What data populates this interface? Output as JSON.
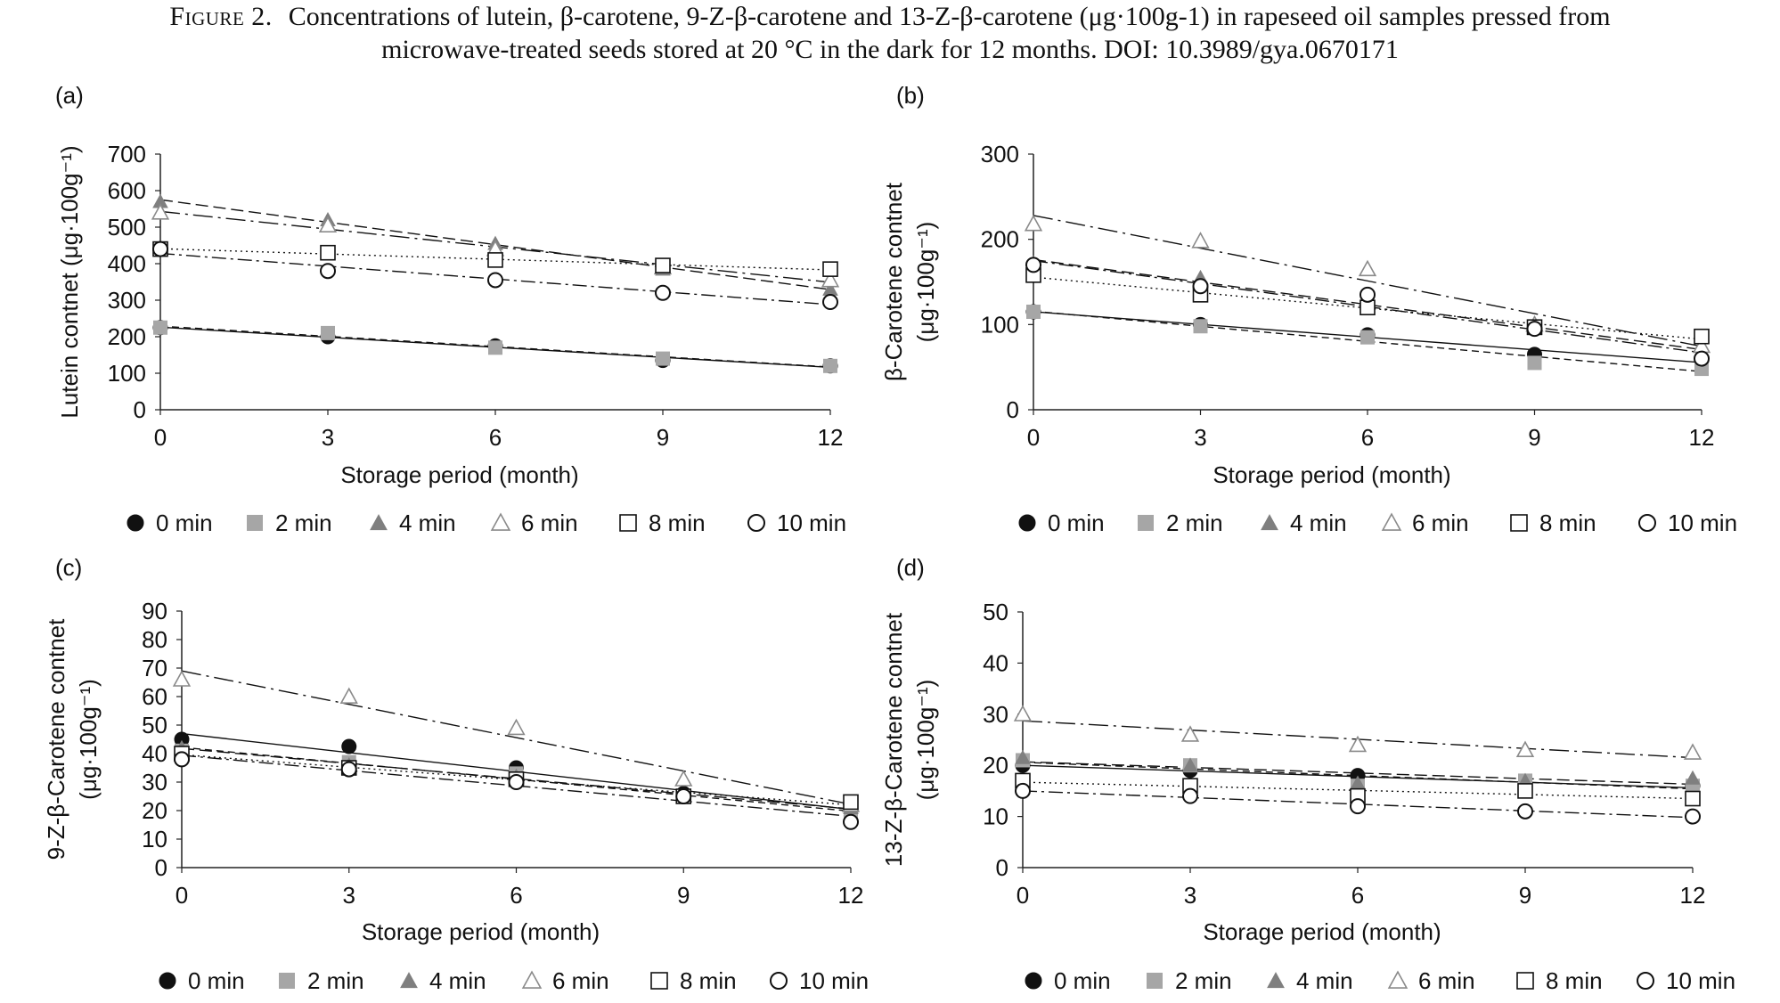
{
  "caption": {
    "label": "Figure 2.",
    "line1": "Concentrations of lutein, β-carotene, 9-Z-β-carotene and 13-Z-β-carotene (μg·100g-1) in rapeseed oil samples pressed from",
    "line2": "microwave-treated seeds stored at 20 °C in the dark for 12 months. DOI: 10.3989/gya.0670171"
  },
  "legend_entries": [
    {
      "label": "0 min",
      "marker": "circle-filled"
    },
    {
      "label": "2 min",
      "marker": "square-gray"
    },
    {
      "label": "4 min",
      "marker": "triangle-filled"
    },
    {
      "label": "6 min",
      "marker": "triangle-open"
    },
    {
      "label": "8 min",
      "marker": "square-open"
    },
    {
      "label": "10 min",
      "marker": "circle-open"
    }
  ],
  "colors": {
    "axis": "#222222",
    "black": "#111111",
    "gray_marker": "#a6a6a6",
    "dark_gray_marker": "#7f7f7f",
    "open_gray": "#8a8a8a"
  },
  "chart_data": [
    {
      "panel": "(a)",
      "type": "scatter",
      "trendlines": "linear",
      "xlabel": "Storage period (month)",
      "ylabel": [
        "Lutein contnet (μg·100g⁻¹)"
      ],
      "x": [
        0,
        3,
        6,
        9,
        12
      ],
      "xticks": [
        "0",
        "3",
        "6",
        "9",
        "12"
      ],
      "ylim": [
        0,
        700
      ],
      "yticks": [
        "0",
        "100",
        "200",
        "300",
        "400",
        "500",
        "600",
        "700"
      ],
      "series": [
        {
          "name": "0 min",
          "values": [
            225,
            200,
            175,
            135,
            120
          ]
        },
        {
          "name": "2 min",
          "values": [
            225,
            210,
            170,
            140,
            120
          ]
        },
        {
          "name": "4 min",
          "values": [
            570,
            520,
            455,
            385,
            330
          ]
        },
        {
          "name": "6 min",
          "values": [
            540,
            505,
            440,
            390,
            355
          ]
        },
        {
          "name": "8 min",
          "values": [
            440,
            430,
            410,
            395,
            385
          ]
        },
        {
          "name": "10 min",
          "values": [
            440,
            380,
            355,
            320,
            295
          ]
        }
      ]
    },
    {
      "panel": "(b)",
      "type": "scatter",
      "trendlines": "linear",
      "xlabel": "Storage period (month)",
      "ylabel": [
        "β-Carotene contnet",
        "(μg·100g⁻¹)"
      ],
      "x": [
        0,
        3,
        6,
        9,
        12
      ],
      "xticks": [
        "0",
        "3",
        "6",
        "9",
        "12"
      ],
      "ylim": [
        0,
        300
      ],
      "yticks": [
        "0",
        "100",
        "200",
        "300"
      ],
      "series": [
        {
          "name": "0 min",
          "values": [
            115,
            100,
            88,
            65,
            58
          ]
        },
        {
          "name": "2 min",
          "values": [
            115,
            98,
            85,
            55,
            48
          ]
        },
        {
          "name": "4 min",
          "values": [
            172,
            155,
            125,
            95,
            70
          ]
        },
        {
          "name": "6 min",
          "values": [
            218,
            198,
            165,
            100,
            75
          ]
        },
        {
          "name": "8 min",
          "values": [
            158,
            135,
            120,
            97,
            86
          ]
        },
        {
          "name": "10 min",
          "values": [
            170,
            145,
            135,
            95,
            60
          ]
        }
      ]
    },
    {
      "panel": "(c)",
      "type": "scatter",
      "trendlines": "linear",
      "xlabel": "Storage period (month)",
      "ylabel": [
        "9-Z-β-Carotene contnet",
        "(μg·100g⁻¹)"
      ],
      "x": [
        0,
        3,
        6,
        9,
        12
      ],
      "xticks": [
        "0",
        "3",
        "6",
        "9",
        "12"
      ],
      "ylim": [
        0,
        90
      ],
      "yticks": [
        "0",
        "10",
        "20",
        "30",
        "40",
        "50",
        "60",
        "70",
        "80",
        "90"
      ],
      "series": [
        {
          "name": "0 min",
          "values": [
            45,
            42.5,
            35,
            26,
            20
          ]
        },
        {
          "name": "2 min",
          "values": [
            41,
            37,
            33,
            25,
            19
          ]
        },
        {
          "name": "4 min",
          "values": [
            42,
            36,
            32,
            25,
            21
          ]
        },
        {
          "name": "6 min",
          "values": [
            66,
            60,
            49,
            31,
            22
          ]
        },
        {
          "name": "8 min",
          "values": [
            40,
            35,
            31,
            25,
            23
          ]
        },
        {
          "name": "10 min",
          "values": [
            38,
            34.5,
            30,
            25,
            16
          ]
        }
      ]
    },
    {
      "panel": "(d)",
      "type": "scatter",
      "trendlines": "linear",
      "xlabel": "Storage period (month)",
      "ylabel": [
        "13-Z-β-Carotene contnet",
        "(μg·100g⁻¹)"
      ],
      "x": [
        0,
        3,
        6,
        9,
        12
      ],
      "xticks": [
        "0",
        "3",
        "6",
        "9",
        "12"
      ],
      "ylim": [
        0,
        50
      ],
      "yticks": [
        "0",
        "10",
        "20",
        "30",
        "40",
        "50"
      ],
      "series": [
        {
          "name": "0 min",
          "values": [
            20,
            19,
            18,
            16,
            16
          ]
        },
        {
          "name": "2 min",
          "values": [
            21,
            20,
            16,
            17,
            16
          ]
        },
        {
          "name": "4 min",
          "values": [
            21.5,
            20,
            16.5,
            17,
            17.5
          ]
        },
        {
          "name": "6 min",
          "values": [
            30,
            26,
            24,
            23,
            22.5
          ]
        },
        {
          "name": "8 min",
          "values": [
            17,
            16,
            14,
            15,
            13.5
          ]
        },
        {
          "name": "10 min",
          "values": [
            15,
            14,
            12,
            11,
            10
          ]
        }
      ]
    }
  ]
}
